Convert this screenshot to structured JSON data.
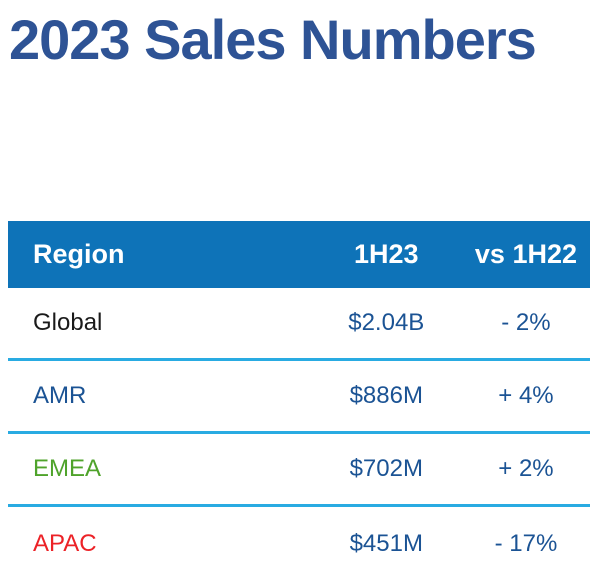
{
  "slide": {
    "title": "2023 Sales Numbers"
  },
  "colors": {
    "background": "#FFFFFF",
    "title": "#2E5395",
    "header_bg": "#0E73B8",
    "header_text": "#FFFFFF",
    "divider": "#29ABE2",
    "value_blue": "#1B5394",
    "region_global": "#1A1A1A",
    "region_amr": "#1B5394",
    "region_emea": "#4FA32B",
    "region_apac": "#EC2227"
  },
  "table": {
    "headers": [
      "Region",
      "1H23",
      "vs 1H22"
    ],
    "rows": [
      {
        "region": "Global",
        "value_1h23": "$2.04B",
        "vs_1h22": "- 2%"
      },
      {
        "region": "AMR",
        "value_1h23": "$886M",
        "vs_1h22": "+ 4%"
      },
      {
        "region": "EMEA",
        "value_1h23": "$702M",
        "vs_1h22": "+ 2%"
      },
      {
        "region": "APAC",
        "value_1h23": "$451M",
        "vs_1h22": "- 17%"
      }
    ]
  },
  "chart_data": {
    "type": "table",
    "title": "2023 Sales Numbers",
    "columns": [
      "Region",
      "1H23",
      "vs 1H22"
    ],
    "rows": [
      [
        "Global",
        "$2.04B",
        "- 2%"
      ],
      [
        "AMR",
        "$886M",
        "+ 4%"
      ],
      [
        "EMEA",
        "$702M",
        "+ 2%"
      ],
      [
        "APAC",
        "$451M",
        "- 17%"
      ]
    ]
  }
}
